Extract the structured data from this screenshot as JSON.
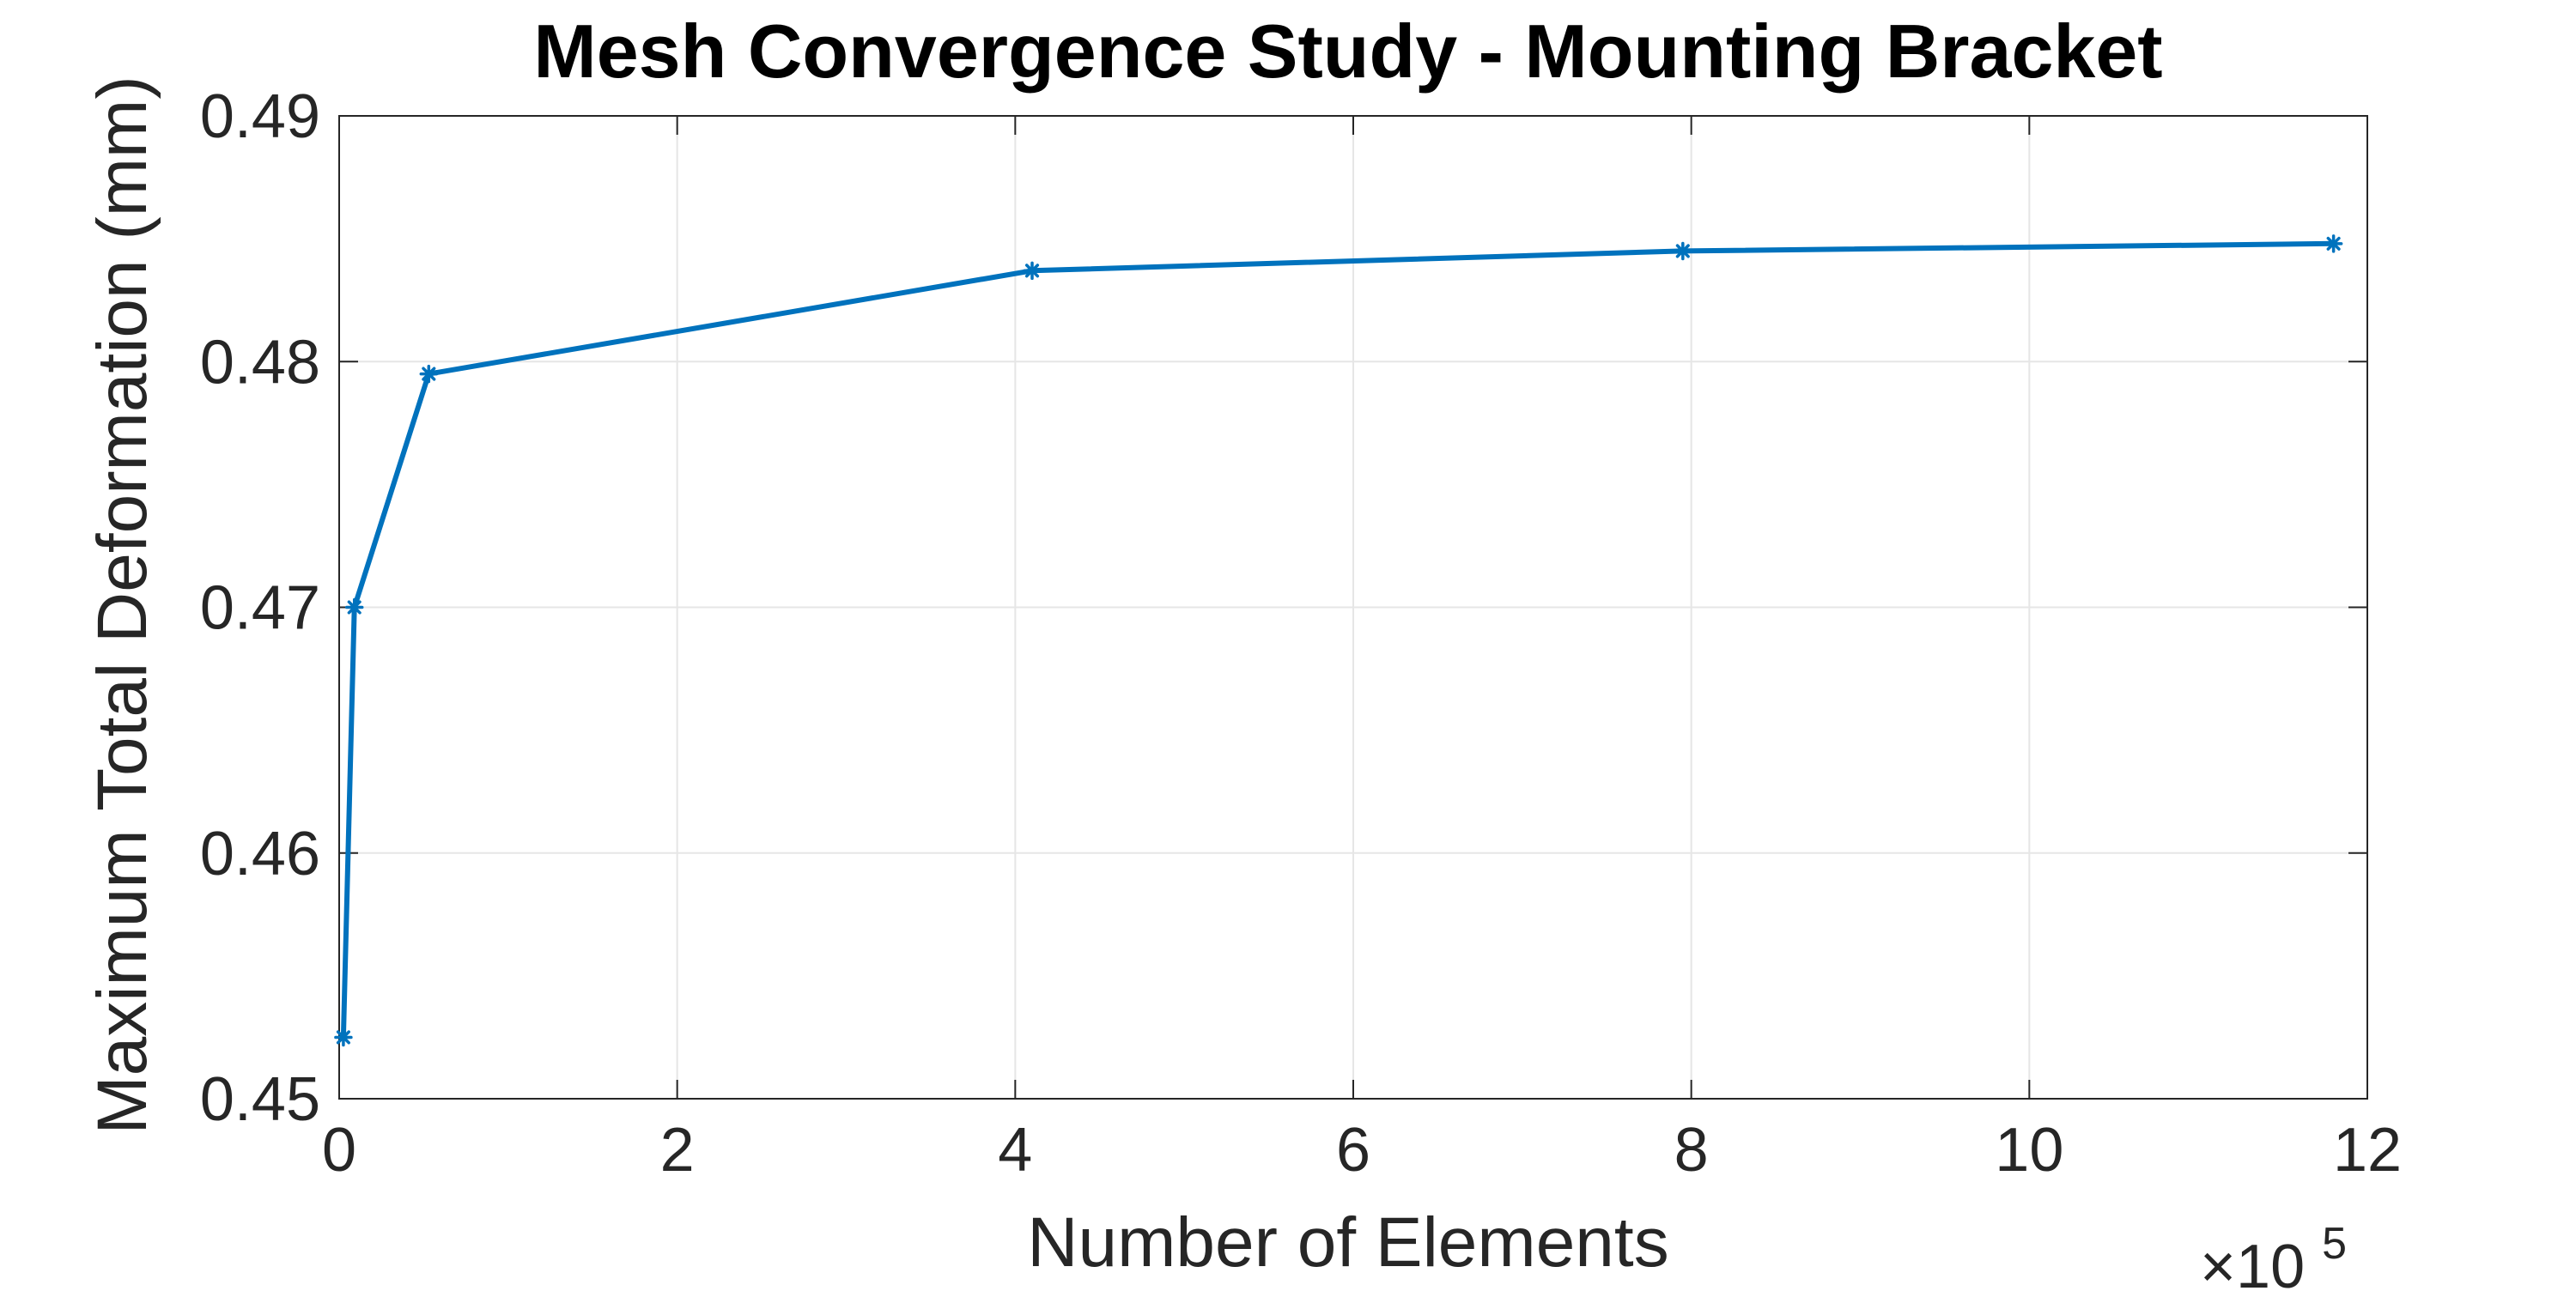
{
  "chart_data": {
    "type": "line",
    "title": "Mesh Convergence Study - Mounting Bracket",
    "xlabel": "Number of Elements",
    "ylabel": "Maximum Total Deformation (mm)",
    "x_multiplier": {
      "base": "×10",
      "exponent": "5"
    },
    "xlim": [
      0,
      1200000
    ],
    "ylim": [
      0.45,
      0.49
    ],
    "xticks": [
      0,
      200000,
      400000,
      600000,
      800000,
      1000000,
      1200000
    ],
    "xtick_labels": [
      "0",
      "2",
      "4",
      "6",
      "8",
      "10",
      "12"
    ],
    "yticks": [
      0.45,
      0.46,
      0.47,
      0.48,
      0.49
    ],
    "ytick_labels": [
      "0.45",
      "0.46",
      "0.47",
      "0.48",
      "0.49"
    ],
    "grid": true,
    "series": [
      {
        "color": "#0072bd",
        "marker": "asterisk",
        "x": [
          2500,
          9000,
          53000,
          410000,
          795000,
          1180000
        ],
        "y": [
          0.4525,
          0.47,
          0.4795,
          0.4837,
          0.4845,
          0.4848
        ]
      }
    ]
  }
}
